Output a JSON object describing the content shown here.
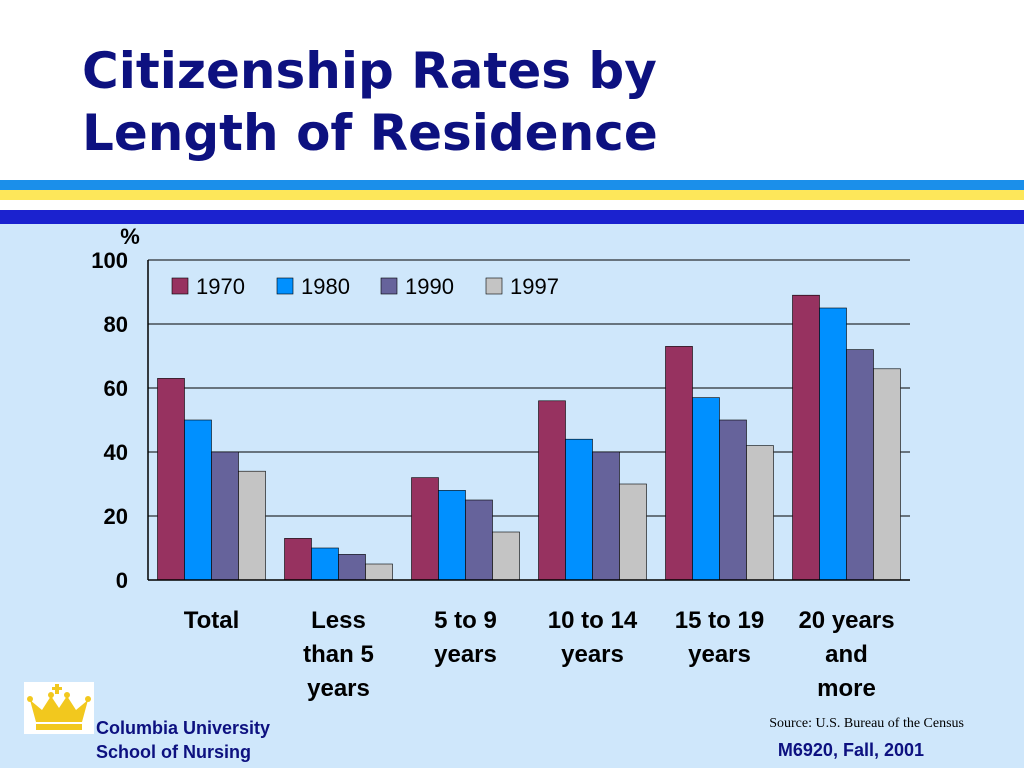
{
  "slide": {
    "title_line1": "Citizenship Rates by",
    "title_line2": "Length of Residence",
    "org_line1": "Columbia University",
    "org_line2": "School of Nursing",
    "source": "Source: U.S. Bureau of the Census",
    "course": "M6920, Fall, 2001",
    "colors": {
      "title": "#0d1180",
      "stripe_blue": "#1b8fea",
      "stripe_yellow": "#fde75a",
      "stripe_dark": "#1b22cf",
      "background": "#cfe7fb",
      "logo_crown": "#f2c81e"
    }
  },
  "chart_data": {
    "type": "bar",
    "title": "",
    "ylabel": "%",
    "xlabel": "",
    "ylim": [
      0,
      100
    ],
    "yticks": [
      "0",
      "20",
      "40",
      "60",
      "80",
      "100"
    ],
    "grid": true,
    "legend_position": "top-left",
    "categories": [
      [
        "Total"
      ],
      [
        "Less",
        "than 5",
        "years"
      ],
      [
        "5 to 9",
        "years"
      ],
      [
        "10 to 14",
        "years"
      ],
      [
        "15 to 19",
        "years"
      ],
      [
        "20 years",
        "and",
        "more"
      ]
    ],
    "series": [
      {
        "name": "1970",
        "color": "#973260",
        "values": [
          63,
          13,
          32,
          56,
          73,
          89
        ]
      },
      {
        "name": "1980",
        "color": "#0090ff",
        "values": [
          50,
          10,
          28,
          44,
          57,
          85
        ]
      },
      {
        "name": "1990",
        "color": "#66639b",
        "values": [
          40,
          8,
          25,
          40,
          50,
          72
        ]
      },
      {
        "name": "1997",
        "color": "#c4c4c4",
        "values": [
          34,
          5,
          15,
          30,
          42,
          66
        ]
      }
    ]
  }
}
